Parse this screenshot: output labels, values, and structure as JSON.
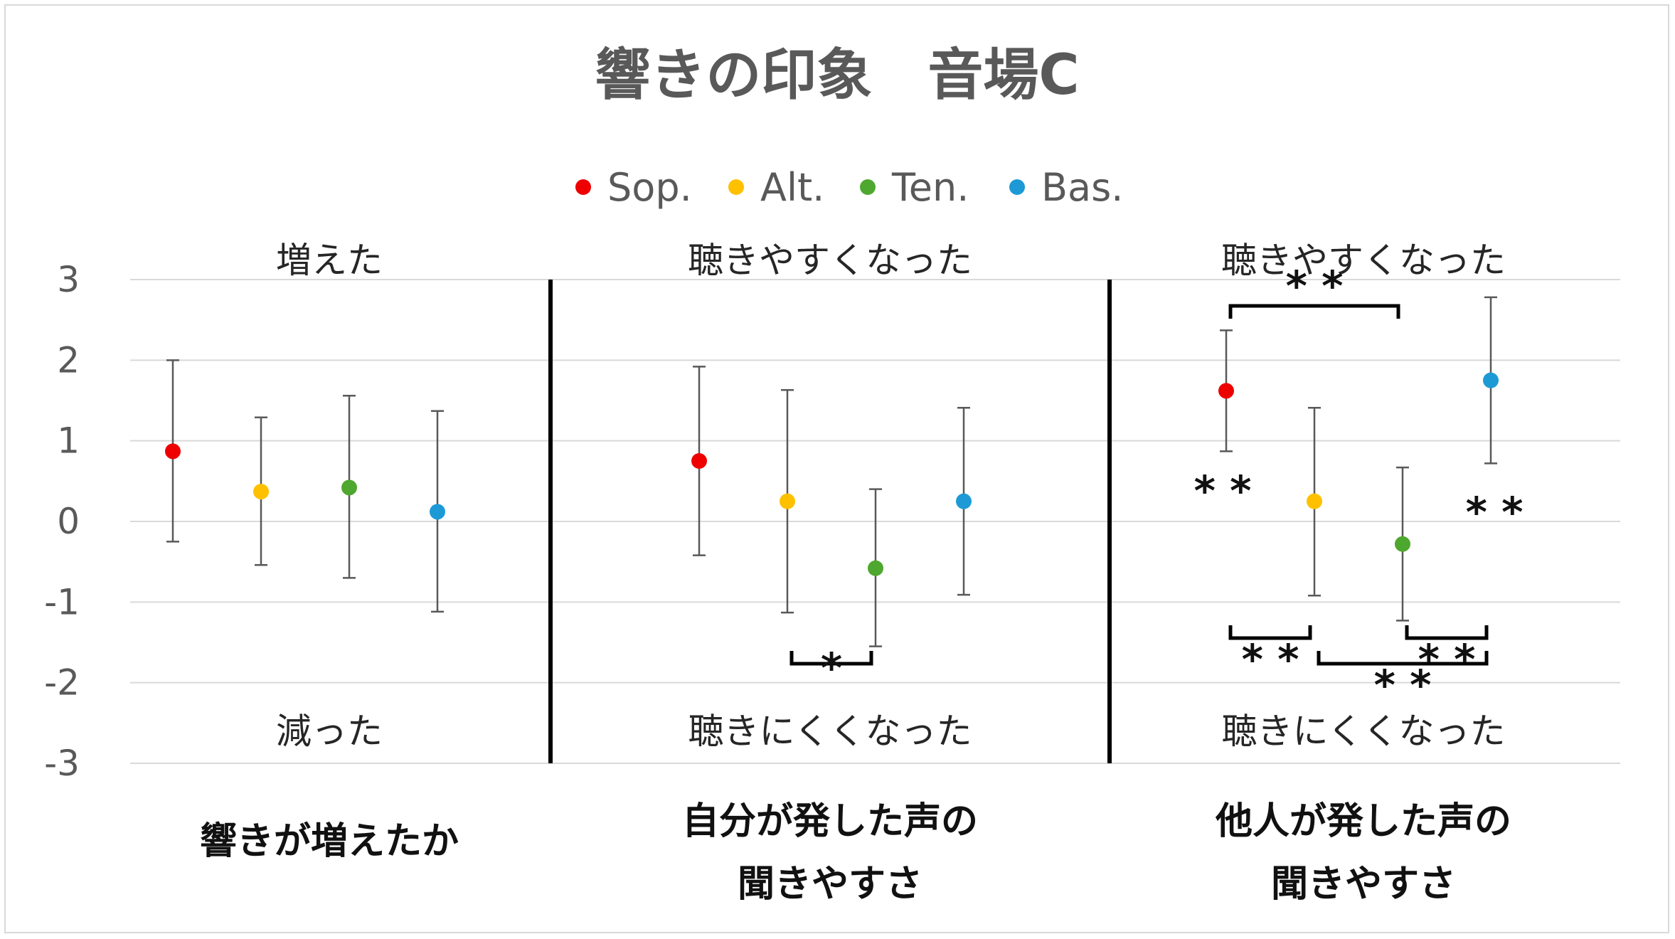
{
  "chart_data": {
    "type": "scatter",
    "title": "響きの印象　音場C",
    "ylim": [
      -3,
      3
    ],
    "yticks": [
      "3",
      "2",
      "1",
      "0",
      "-1",
      "-2",
      "-3"
    ],
    "yticks_values": [
      3,
      2,
      1,
      0,
      -1,
      -2,
      -3
    ],
    "grid": true,
    "legend_position": "top",
    "series": [
      {
        "name": "Sop.",
        "color": "#ee0000",
        "values": [
          0.87,
          0.75,
          1.62
        ],
        "err_low": [
          -0.25,
          -0.42,
          0.87
        ],
        "err_high": [
          2.0,
          1.92,
          2.37
        ]
      },
      {
        "name": "Alt.",
        "color": "#ffc000",
        "values": [
          0.37,
          0.25,
          0.25
        ],
        "err_low": [
          -0.54,
          -1.13,
          -0.92
        ],
        "err_high": [
          1.29,
          1.63,
          1.41
        ]
      },
      {
        "name": "Ten.",
        "color": "#4ea72e",
        "values": [
          0.42,
          -0.58,
          -0.28
        ],
        "err_low": [
          -0.7,
          -1.55,
          -1.23
        ],
        "err_high": [
          1.56,
          0.4,
          0.67
        ]
      },
      {
        "name": "Bas.",
        "color": "#1d9ad6",
        "values": [
          0.12,
          0.25,
          1.75
        ],
        "err_low": [
          -1.12,
          -0.91,
          0.72
        ],
        "err_high": [
          1.37,
          1.41,
          2.78
        ]
      }
    ],
    "panels": [
      {
        "top_label": "増えた",
        "bottom_label": "減った",
        "category_lines": [
          "響きが増えたか"
        ]
      },
      {
        "top_label": "聴きやすくなった",
        "bottom_label": "聴きにくくなった",
        "category_lines": [
          "自分が発した声の",
          "聞きやすさ"
        ]
      },
      {
        "top_label": "聴きやすくなった",
        "bottom_label": "聴きにくくなった",
        "category_lines": [
          "他人が発した声の",
          "聞きやすさ"
        ]
      }
    ],
    "significance": [
      {
        "panel": 1,
        "from": "Alt.",
        "to": "Ten.",
        "label": "*",
        "side": "below"
      },
      {
        "panel": 2,
        "from": "Sop.",
        "to": "Ten.",
        "label": "* *",
        "side": "above"
      },
      {
        "panel": 2,
        "from": "Sop.",
        "to": "Alt.",
        "label": "* *",
        "side": "below"
      },
      {
        "panel": 2,
        "from": "Alt.",
        "to": "Bas.",
        "label": "* *",
        "side": "below"
      },
      {
        "panel": 2,
        "from": "Ten.",
        "to": "Bas.",
        "label": "* *",
        "side": "below"
      }
    ],
    "point_marks": [
      {
        "panel": 2,
        "series": "Sop.",
        "label": "* *"
      },
      {
        "panel": 2,
        "series": "Bas.",
        "label": "* *"
      }
    ]
  }
}
